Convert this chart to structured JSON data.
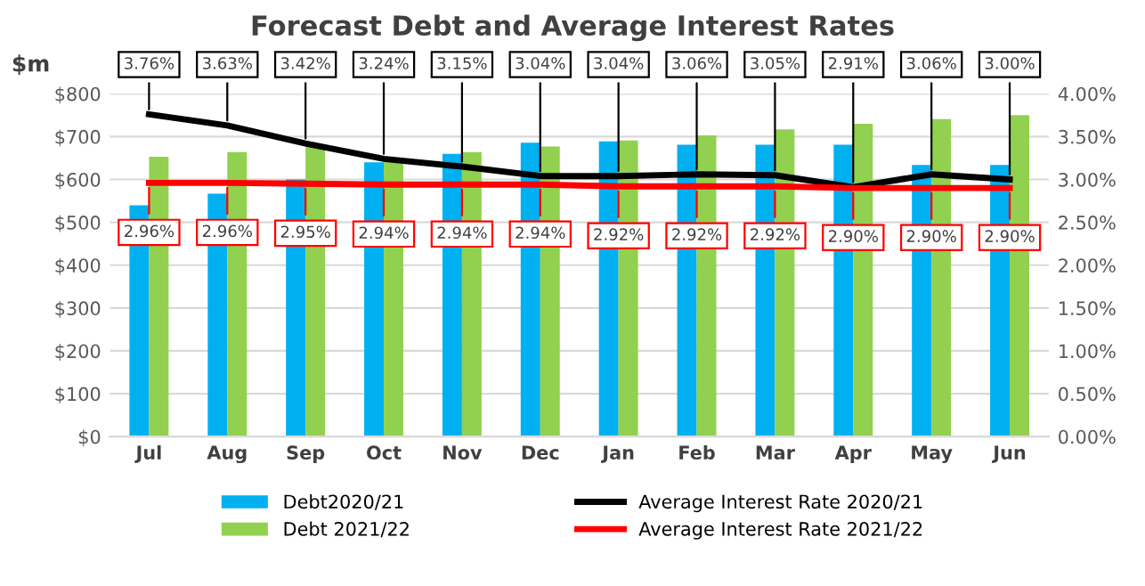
{
  "chart_data": {
    "type": "bar",
    "title": "Forecast Debt and Average Interest Rates",
    "ylabel": "$m",
    "categories": [
      "Jul",
      "Aug",
      "Sep",
      "Oct",
      "Nov",
      "Dec",
      "Jan",
      "Feb",
      "Mar",
      "Apr",
      "May",
      "Jun"
    ],
    "series": [
      {
        "name": "Debt2020/21",
        "color": "#00b0f0",
        "values": [
          540,
          567,
          600,
          640,
          660,
          686,
          689,
          681,
          681,
          681,
          634,
          634
        ]
      },
      {
        "name": "Debt 2021/22",
        "color": "#92d050",
        "values": [
          653,
          664,
          681,
          643,
          664,
          677,
          691,
          703,
          717,
          730,
          741,
          750
        ]
      },
      {
        "name": "Average Interest Rate 2020/21",
        "type": "line",
        "axis": "y2",
        "color": "#000000",
        "values": [
          3.76,
          3.63,
          3.42,
          3.24,
          3.15,
          3.04,
          3.04,
          3.06,
          3.05,
          2.91,
          3.06,
          3.0
        ],
        "value_labels": [
          "3.76%",
          "3.63%",
          "3.42%",
          "3.24%",
          "3.15%",
          "3.04%",
          "3.04%",
          "3.06%",
          "3.05%",
          "2.91%",
          "3.06%",
          "3.00%"
        ]
      },
      {
        "name": "Average Interest Rate 2021/22",
        "type": "line",
        "axis": "y2",
        "color": "#ff0000",
        "values": [
          2.96,
          2.96,
          2.95,
          2.94,
          2.94,
          2.94,
          2.92,
          2.92,
          2.92,
          2.9,
          2.9,
          2.9
        ],
        "value_labels": [
          "2.96%",
          "2.96%",
          "2.95%",
          "2.94%",
          "2.94%",
          "2.94%",
          "2.92%",
          "2.92%",
          "2.92%",
          "2.90%",
          "2.90%",
          "2.90%"
        ]
      }
    ],
    "ylim": [
      0,
      800
    ],
    "yticks": [
      {
        "value": 0,
        "label": "$0"
      },
      {
        "value": 100,
        "label": "$100"
      },
      {
        "value": 200,
        "label": "$200"
      },
      {
        "value": 300,
        "label": "$300"
      },
      {
        "value": 400,
        "label": "$400"
      },
      {
        "value": 500,
        "label": "$500"
      },
      {
        "value": 600,
        "label": "$600"
      },
      {
        "value": 700,
        "label": "$700"
      },
      {
        "value": 800,
        "label": "$800"
      }
    ],
    "y2lim": [
      0,
      4
    ],
    "y2ticks": [
      {
        "value": 0,
        "label": "0.00%"
      },
      {
        "value": 0.5,
        "label": "0.50%"
      },
      {
        "value": 1,
        "label": "1.00%"
      },
      {
        "value": 1.5,
        "label": "1.50%"
      },
      {
        "value": 2,
        "label": "2.00%"
      },
      {
        "value": 2.5,
        "label": "2.50%"
      },
      {
        "value": 3,
        "label": "3.00%"
      },
      {
        "value": 3.5,
        "label": "3.50%"
      },
      {
        "value": 4,
        "label": "4.00%"
      }
    ],
    "grid": "y",
    "legend": "bottom",
    "marker": "none",
    "line_style": "solid"
  }
}
